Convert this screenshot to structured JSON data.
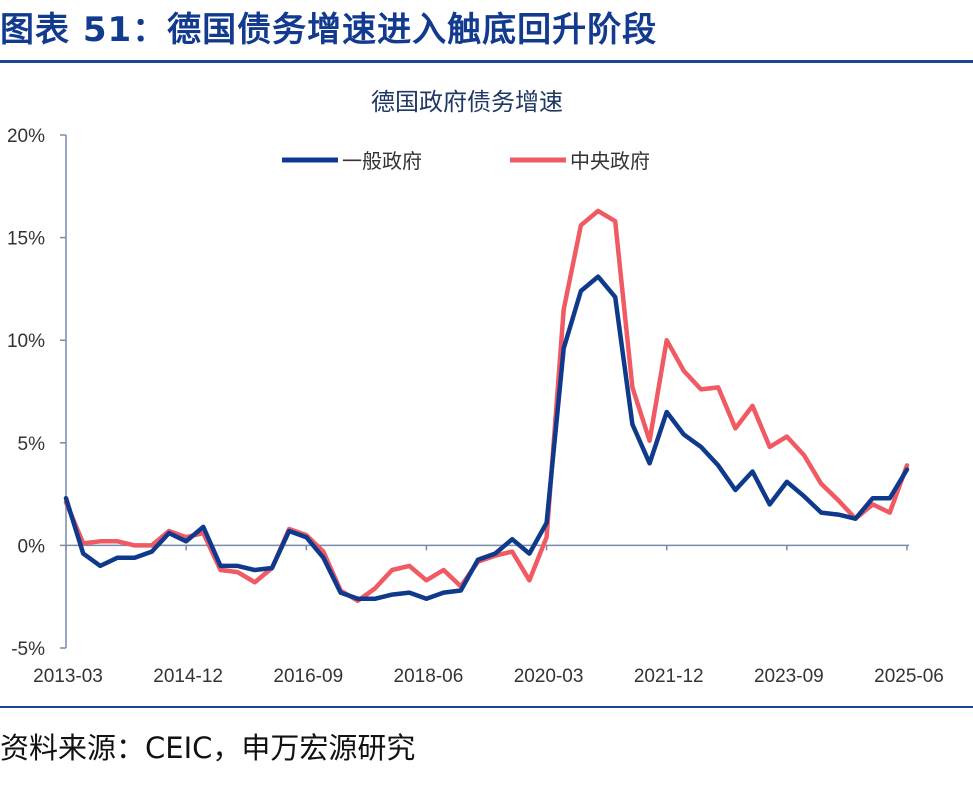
{
  "figure": {
    "title": "图表 51：德国债务增速进入触底回升阶段",
    "source": "资料来源：CEIC，申万宏源研究"
  },
  "colors": {
    "accent": "#1d4595",
    "series_general": "#0f3a8c",
    "series_central": "#ef5a63"
  },
  "chart_data": {
    "type": "line",
    "title": "德国政府债务增速",
    "xlabel": "",
    "ylabel": "",
    "ylim": [
      -5,
      20
    ],
    "y_ticks": [
      "20%",
      "15%",
      "10%",
      "5%",
      "0%",
      "-5%"
    ],
    "y_tick_values": [
      20,
      15,
      10,
      5,
      0,
      -5
    ],
    "x_ticks": [
      "2013-03",
      "2014-12",
      "2016-09",
      "2018-06",
      "2020-03",
      "2021-12",
      "2023-09",
      "2025-06"
    ],
    "x_tick_index": [
      0,
      7,
      14,
      21,
      28,
      35,
      42,
      49
    ],
    "grid": false,
    "legend_position": "top",
    "categories": [
      "2013-03",
      "2013-06",
      "2013-09",
      "2013-12",
      "2014-03",
      "2014-06",
      "2014-09",
      "2014-12",
      "2015-03",
      "2015-06",
      "2015-09",
      "2015-12",
      "2016-03",
      "2016-06",
      "2016-09",
      "2016-12",
      "2017-03",
      "2017-06",
      "2017-09",
      "2017-12",
      "2018-03",
      "2018-06",
      "2018-09",
      "2018-12",
      "2019-03",
      "2019-06",
      "2019-09",
      "2019-12",
      "2020-03",
      "2020-06",
      "2020-09",
      "2020-12",
      "2021-03",
      "2021-06",
      "2021-09",
      "2021-12",
      "2022-03",
      "2022-06",
      "2022-09",
      "2022-12",
      "2023-03",
      "2023-06",
      "2023-09",
      "2023-12",
      "2024-03",
      "2024-06",
      "2024-09",
      "2024-12",
      "2025-03",
      "2025-06"
    ],
    "series": [
      {
        "name": "一般政府",
        "color": "#0f3a8c",
        "values": [
          2.3,
          -0.4,
          -1.0,
          -0.6,
          -0.6,
          -0.3,
          0.6,
          0.2,
          0.9,
          -1.0,
          -1.0,
          -1.2,
          -1.1,
          0.7,
          0.4,
          -0.6,
          -2.3,
          -2.6,
          -2.6,
          -2.4,
          -2.3,
          -2.6,
          -2.3,
          -2.2,
          -0.7,
          -0.4,
          0.3,
          -0.4,
          1.1,
          9.6,
          12.4,
          13.1,
          12.1,
          5.9,
          4.0,
          6.5,
          5.4,
          4.8,
          3.9,
          2.7,
          3.6,
          2.0,
          3.1,
          2.4,
          1.6,
          1.5,
          1.3,
          2.3,
          2.3,
          3.7
        ]
      },
      {
        "name": "中央政府",
        "color": "#ef5a63",
        "values": [
          2.1,
          0.1,
          0.2,
          0.2,
          0.0,
          0.0,
          0.7,
          0.4,
          0.6,
          -1.2,
          -1.3,
          -1.8,
          -1.1,
          0.8,
          0.5,
          -0.3,
          -2.2,
          -2.7,
          -2.1,
          -1.2,
          -1.0,
          -1.7,
          -1.2,
          -2.0,
          -0.8,
          -0.5,
          -0.3,
          -1.7,
          0.4,
          11.5,
          15.6,
          16.3,
          15.8,
          7.7,
          5.1,
          10.0,
          8.5,
          7.6,
          7.7,
          5.7,
          6.8,
          4.8,
          5.3,
          4.4,
          3.0,
          2.2,
          1.3,
          2.0,
          1.6,
          3.9
        ]
      }
    ]
  }
}
